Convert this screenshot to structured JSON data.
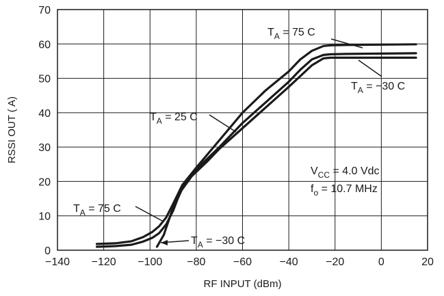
{
  "chart_data": {
    "type": "line",
    "xlabel": "RF INPUT (dBm)",
    "ylabel": "RSSI OUT ( A)",
    "xlim": [
      -140,
      20
    ],
    "ylim": [
      0,
      70
    ],
    "xticks": [
      -140,
      -120,
      -100,
      -80,
      -60,
      -40,
      -20,
      0,
      20
    ],
    "yticks": [
      0,
      10,
      20,
      30,
      40,
      50,
      60,
      70
    ],
    "xtick_labels": [
      "−140",
      "−120",
      "−100",
      "−80",
      "−60",
      "−40",
      "−20",
      "0",
      "20"
    ],
    "ytick_labels": [
      "0",
      "10",
      "20",
      "30",
      "40",
      "50",
      "60",
      "70"
    ],
    "grid": true,
    "series": [
      {
        "name": "T_A = 75 C",
        "x": [
          -123,
          -115,
          -108,
          -103,
          -99,
          -96,
          -93,
          -90,
          -86,
          -80,
          -70,
          -60,
          -50,
          -40,
          -35,
          -30,
          -25,
          -22,
          -15,
          0,
          15
        ],
        "y": [
          1.8,
          2.0,
          2.6,
          3.8,
          5.3,
          7.0,
          9.5,
          13.5,
          19.0,
          24.0,
          32.0,
          40.0,
          46.5,
          52.0,
          55.5,
          58.0,
          59.4,
          59.6,
          59.7,
          59.8,
          59.9
        ]
      },
      {
        "name": "T_A = 25 C",
        "x": [
          -123,
          -115,
          -108,
          -103,
          -99,
          -96,
          -93,
          -90,
          -88,
          -86,
          -80,
          -70,
          -60,
          -50,
          -40,
          -35,
          -30,
          -25,
          -22,
          -15,
          0,
          15
        ],
        "y": [
          1.0,
          1.2,
          1.6,
          2.5,
          3.6,
          5.0,
          7.5,
          11.5,
          15.0,
          18.0,
          23.5,
          30.0,
          37.0,
          43.0,
          49.0,
          52.5,
          55.5,
          56.8,
          57.0,
          57.1,
          57.2,
          57.3
        ]
      },
      {
        "name": "T_A = −30 C",
        "x": [
          -97,
          -94,
          -91,
          -88,
          -86,
          -82,
          -75,
          -70,
          -60,
          -50,
          -40,
          -30,
          -25,
          -22,
          -15,
          0,
          15
        ],
        "y": [
          1.0,
          4.5,
          10.5,
          16.0,
          17.8,
          21.5,
          26.0,
          29.5,
          35.5,
          41.5,
          47.5,
          53.8,
          55.8,
          56.0,
          56.0,
          56.0,
          56.0
        ]
      }
    ],
    "annotations": {
      "t75_upper": {
        "main": "T",
        "sub": "A",
        "rest": " = 75  C"
      },
      "tm30_upper": {
        "main": "T",
        "sub": "A",
        "rest": " = −30  C"
      },
      "t25": {
        "main": "T",
        "sub": "A",
        "rest": " = 25  C"
      },
      "t75_lower": {
        "main": "T",
        "sub": "A",
        "rest": " = 75  C"
      },
      "tm30_lower": {
        "main": "T",
        "sub": "A",
        "rest": " = −30  C"
      },
      "vcc": {
        "main": "V",
        "sub": "CC",
        "rest": " = 4.0 Vdc"
      },
      "fo": {
        "main": "f",
        "sub": "o",
        "rest": " = 10.7 MHz"
      }
    },
    "colors": {
      "curve": "#1a1a1a",
      "grid": "#1a1a1a",
      "background": "#ffffff"
    }
  }
}
